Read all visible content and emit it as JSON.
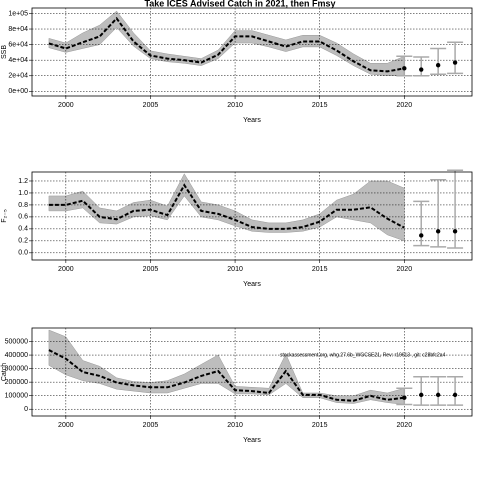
{
  "chart_data": [
    {
      "type": "line",
      "title": "Take ICES Advised Catch in 2021, then Fmsy",
      "ylabel": "SSB",
      "xlabel": "Years",
      "x": [
        1999,
        2000,
        2001,
        2002,
        2003,
        2004,
        2005,
        2006,
        2007,
        2008,
        2009,
        2010,
        2011,
        2012,
        2013,
        2014,
        2015,
        2016,
        2017,
        2018,
        2019,
        2020
      ],
      "values": [
        61500,
        55000,
        63000,
        70500,
        93600,
        64000,
        46000,
        42000,
        40000,
        37000,
        47000,
        70500,
        70500,
        64000,
        57500,
        64000,
        64000,
        52500,
        38500,
        27000,
        25600,
        29500
      ],
      "upper": [
        68000,
        62000,
        75000,
        85000,
        103000,
        75000,
        52000,
        48000,
        45000,
        42000,
        53000,
        78000,
        78000,
        72000,
        66000,
        72000,
        72000,
        62000,
        48000,
        36000,
        36000,
        45000
      ],
      "lower": [
        56000,
        50000,
        55000,
        60000,
        82000,
        58000,
        42000,
        38000,
        36000,
        33000,
        42000,
        62000,
        62000,
        57000,
        51000,
        57000,
        57000,
        46000,
        33000,
        22000,
        20000,
        20000
      ],
      "projection": {
        "x": [
          2020,
          2021,
          2022,
          2023
        ],
        "values": [
          29500,
          28000,
          33500,
          37000
        ],
        "low": [
          20000,
          20000,
          22000,
          23000
        ],
        "high": [
          45000,
          44000,
          55000,
          63000
        ]
      },
      "color": "#000000",
      "band_color": "#bdbdbd",
      "bar_color": "#aaaaaa",
      "xlim": [
        1998,
        2024
      ],
      "xticks": [
        2000,
        2005,
        2010,
        2015,
        2020
      ],
      "ylim": [
        -6000,
        107000
      ],
      "yticks": [
        {
          "value": 0,
          "label": "0e+00"
        },
        {
          "value": 20000,
          "label": "2e+04"
        },
        {
          "value": 40000,
          "label": "4e+04"
        },
        {
          "value": 60000,
          "label": "6e+04"
        },
        {
          "value": 80000,
          "label": "8e+04"
        },
        {
          "value": 100000,
          "label": "1e+05"
        }
      ],
      "grid": true
    },
    {
      "type": "line",
      "ylabel": "F₂₋₅",
      "xlabel": "Years",
      "x": [
        1999,
        2000,
        2001,
        2002,
        2003,
        2004,
        2005,
        2006,
        2007,
        2008,
        2009,
        2010,
        2011,
        2012,
        2013,
        2014,
        2015,
        2016,
        2017,
        2018,
        2019,
        2020
      ],
      "values": [
        0.8,
        0.8,
        0.87,
        0.6,
        0.56,
        0.7,
        0.72,
        0.63,
        1.13,
        0.7,
        0.65,
        0.55,
        0.43,
        0.4,
        0.4,
        0.43,
        0.52,
        0.72,
        0.72,
        0.76,
        0.57,
        0.42
      ],
      "upper": [
        0.95,
        0.95,
        1.03,
        0.75,
        0.7,
        0.84,
        0.88,
        0.78,
        1.32,
        0.85,
        0.8,
        0.7,
        0.55,
        0.5,
        0.5,
        0.55,
        0.65,
        0.88,
        0.98,
        1.2,
        1.2,
        1.08
      ],
      "lower": [
        0.7,
        0.7,
        0.75,
        0.5,
        0.48,
        0.6,
        0.62,
        0.55,
        0.95,
        0.6,
        0.55,
        0.45,
        0.36,
        0.34,
        0.34,
        0.36,
        0.43,
        0.6,
        0.55,
        0.5,
        0.3,
        0.2
      ],
      "projection": {
        "x": [
          2021,
          2022,
          2023
        ],
        "values": [
          0.29,
          0.36,
          0.36
        ],
        "low": [
          0.12,
          0.1,
          0.08
        ],
        "high": [
          0.86,
          1.22,
          1.38
        ]
      },
      "color": "#000000",
      "band_color": "#bdbdbd",
      "bar_color": "#aaaaaa",
      "xlim": [
        1998,
        2024
      ],
      "xticks": [
        2000,
        2005,
        2010,
        2015,
        2020
      ],
      "ylim": [
        -0.12,
        1.35
      ],
      "yticks": [
        {
          "value": 0,
          "label": "0.0"
        },
        0.2,
        0.4,
        0.6,
        0.8,
        {
          "value": 1,
          "label": "1.0"
        },
        1.2
      ],
      "grid": true
    },
    {
      "type": "line",
      "ylabel": "Catch",
      "xlabel": "Years",
      "annotation": "stockassessment.org, whg.27.6b_WGCSE21, Rev: r19613 , git: c28bfc2a4",
      "x": [
        1999,
        2000,
        2001,
        2002,
        2003,
        2004,
        2005,
        2006,
        2007,
        2008,
        2009,
        2010,
        2011,
        2012,
        2013,
        2014,
        2015,
        2016,
        2017,
        2018,
        2019,
        2020
      ],
      "values": [
        437000,
        373000,
        275000,
        246000,
        197000,
        176000,
        162000,
        162000,
        197000,
        246000,
        282000,
        141000,
        134000,
        120000,
        282000,
        106000,
        106000,
        70000,
        63000,
        99000,
        70000,
        85000
      ],
      "upper": [
        585000,
        535000,
        360000,
        317000,
        232000,
        204000,
        197000,
        211000,
        260000,
        331000,
        401000,
        169000,
        162000,
        155000,
        408000,
        120000,
        120000,
        99000,
        99000,
        141000,
        120000,
        155000
      ],
      "lower": [
        324000,
        254000,
        211000,
        190000,
        148000,
        134000,
        120000,
        120000,
        155000,
        190000,
        190000,
        113000,
        113000,
        106000,
        190000,
        85000,
        85000,
        49000,
        42000,
        70000,
        49000,
        35000
      ],
      "projection": {
        "x": [
          2020,
          2021,
          2022,
          2023
        ],
        "values": [
          85000,
          106000,
          106000,
          106000
        ],
        "low": [
          35000,
          30000,
          30000,
          30000
        ],
        "high": [
          155000,
          240000,
          240000,
          240000
        ]
      },
      "color": "#000000",
      "band_color": "#bdbdbd",
      "bar_color": "#aaaaaa",
      "xlim": [
        1998,
        2024
      ],
      "xticks": [
        2000,
        2005,
        2010,
        2015,
        2020
      ],
      "ylim": [
        -50000,
        600000
      ],
      "yticks": [
        0,
        100000,
        200000,
        300000,
        400000,
        500000
      ],
      "grid": true
    }
  ]
}
